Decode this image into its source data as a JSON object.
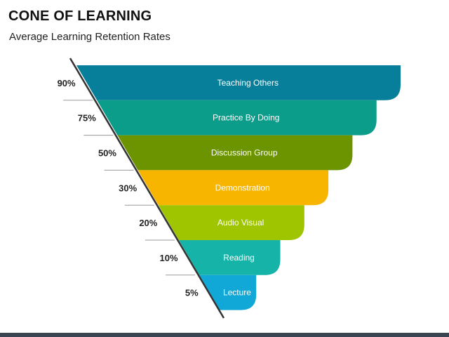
{
  "header": {
    "title": "CONE OF LEARNING",
    "subtitle": "Average Learning Retention Rates"
  },
  "cone": {
    "levels": [
      {
        "label": "Teaching Others",
        "percent": "90%",
        "color": "#077f9a"
      },
      {
        "label": "Practice By Doing",
        "percent": "75%",
        "color": "#0b9c8a"
      },
      {
        "label": "Discussion Group",
        "percent": "50%",
        "color": "#6c9300"
      },
      {
        "label": "Demonstration",
        "percent": "30%",
        "color": "#f7b500"
      },
      {
        "label": "Audio Visual",
        "percent": "20%",
        "color": "#9fc400"
      },
      {
        "label": "Reading",
        "percent": "10%",
        "color": "#16b3a8"
      },
      {
        "label": "Lecture",
        "percent": "5%",
        "color": "#11a8d8"
      }
    ]
  },
  "colors": {
    "edge_line": "#333333",
    "divider": "#9a9a9a",
    "bottom_bar": "#3a4552"
  }
}
